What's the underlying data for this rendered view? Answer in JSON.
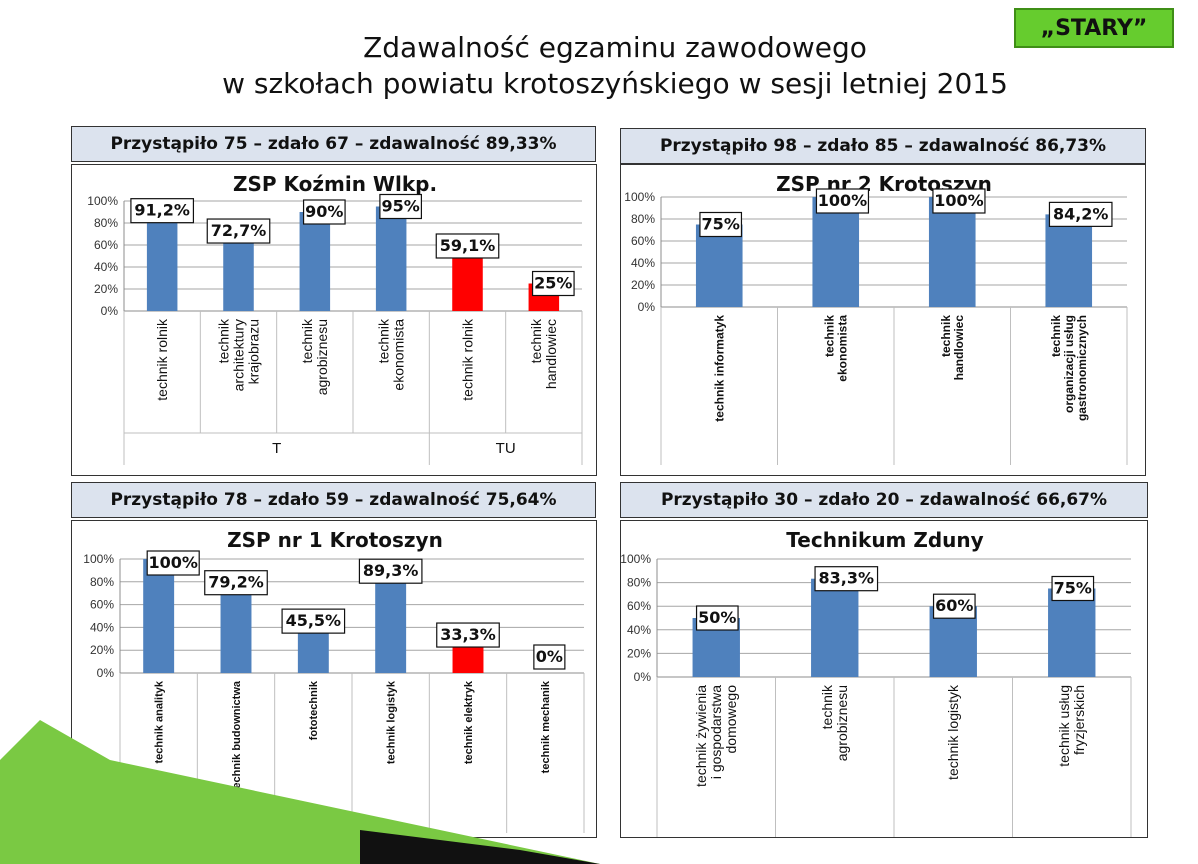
{
  "badge": "„STARY”",
  "title_line1": "Zdawalność egzaminu zawodowego",
  "title_line2": "w szkołach powiatu krotoszyńskiego w sesji letniej 2015",
  "colors": {
    "blue": "#4f81bd",
    "red": "#ff0000",
    "badge_green": "#66cc2e",
    "summary_bg": "#dce3ee"
  },
  "chart_data": [
    {
      "type": "bar",
      "title": "ZSP Koźmin Wlkp.",
      "summary": "Przystąpiło 75 – zdało 67 – zdawalność  89,33%",
      "categories": [
        [
          "technik rolnik"
        ],
        [
          "technik",
          "architektury",
          "krajobrazu"
        ],
        [
          "technik",
          "agrobiznesu"
        ],
        [
          "technik",
          "ekonomista"
        ],
        [
          "technik rolnik"
        ],
        [
          "technik",
          "handlowiec"
        ]
      ],
      "groups": [
        {
          "label": "T",
          "count": 4
        },
        {
          "label": "TU",
          "count": 2
        }
      ],
      "values": [
        91.2,
        72.7,
        90,
        95,
        59.1,
        25
      ],
      "labels": [
        "91,2%",
        "72,7%",
        "90%",
        "95%",
        "59,1%",
        "25%"
      ],
      "bar_colors": [
        "blue",
        "blue",
        "blue",
        "blue",
        "red",
        "red"
      ],
      "ylim": [
        0,
        100
      ],
      "yticks": [
        "0%",
        "20%",
        "40%",
        "60%",
        "80%",
        "100%"
      ],
      "grid": true
    },
    {
      "type": "bar",
      "title": "ZSP nr 2 Krotoszyn",
      "summary": "Przystąpiło 98 – zdało 85 – zdawalność  86,73%",
      "categories": [
        [
          "technik informatyk"
        ],
        [
          "technik",
          "ekonomista"
        ],
        [
          "technik",
          "handlowiec"
        ],
        [
          "technik",
          "organizacji usług",
          "gastronomicznych"
        ]
      ],
      "values": [
        75,
        100,
        100,
        84.2
      ],
      "labels": [
        "75%",
        "100%",
        "100%",
        "84,2%"
      ],
      "bar_colors": [
        "blue",
        "blue",
        "blue",
        "blue"
      ],
      "ylim": [
        0,
        100
      ],
      "yticks": [
        "0%",
        "20%",
        "40%",
        "60%",
        "80%",
        "100%"
      ],
      "grid": true
    },
    {
      "type": "bar",
      "title": "ZSP nr 1 Krotoszyn",
      "summary": "Przystąpiło 78 – zdało 59 – zdawalność  75,64%",
      "categories": [
        [
          "technik analityk"
        ],
        [
          "technik budownictwa"
        ],
        [
          "fototechnik"
        ],
        [
          "technik logistyk"
        ],
        [
          "technik elektryk"
        ],
        [
          "technik mechanik"
        ]
      ],
      "values": [
        100,
        79.2,
        45.5,
        89.3,
        33.3,
        0
      ],
      "labels": [
        "100%",
        "79,2%",
        "45,5%",
        "89,3%",
        "33,3%",
        "0%"
      ],
      "bar_colors": [
        "blue",
        "blue",
        "blue",
        "blue",
        "red",
        "red"
      ],
      "ylim": [
        0,
        100
      ],
      "yticks": [
        "0%",
        "20%",
        "40%",
        "60%",
        "80%",
        "100%"
      ],
      "grid": true
    },
    {
      "type": "bar",
      "title": "Technikum Zduny",
      "summary": "Przystąpiło 30 – zdało 20 – zdawalność  66,67%",
      "categories": [
        [
          "technik żywienia",
          "i gospodarstwa",
          "domowego"
        ],
        [
          "technik",
          "agrobiznesu"
        ],
        [
          "technik logistyk"
        ],
        [
          "technik usług",
          "fryzjerskich"
        ]
      ],
      "values": [
        50,
        83.3,
        60,
        75
      ],
      "labels": [
        "50%",
        "83,3%",
        "60%",
        "75%"
      ],
      "bar_colors": [
        "blue",
        "blue",
        "blue",
        "blue"
      ],
      "ylim": [
        0,
        100
      ],
      "yticks": [
        "0%",
        "20%",
        "40%",
        "60%",
        "80%",
        "100%"
      ],
      "grid": true
    }
  ]
}
